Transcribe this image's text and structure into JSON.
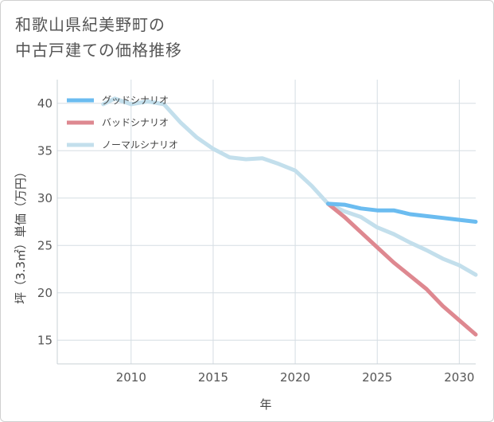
{
  "title": {
    "line1": "和歌山県紀美野町の",
    "line2": "中古戸建ての価格推移"
  },
  "chart_data": {
    "type": "line",
    "xlabel": "年",
    "ylabel": "坪（3.3㎡）単価（万円）",
    "xlim": [
      2005.5,
      2031
    ],
    "ylim": [
      12.5,
      42.5
    ],
    "x_ticks": [
      2010,
      2015,
      2020,
      2025,
      2030
    ],
    "y_ticks": [
      15,
      20,
      25,
      30,
      35,
      40
    ],
    "grid": true,
    "legend_position": "top-left",
    "series": [
      {
        "name": "グッドシナリオ",
        "color": "#6bbcf0",
        "width": 5,
        "x": [
          2022,
          2023,
          2024,
          2025,
          2026,
          2027,
          2028,
          2029,
          2030,
          2031
        ],
        "y": [
          29.4,
          29.3,
          28.9,
          28.7,
          28.7,
          28.3,
          28.1,
          27.9,
          27.7,
          27.5
        ]
      },
      {
        "name": "バッドシナリオ",
        "color": "#de8890",
        "width": 5,
        "x": [
          2022,
          2023,
          2024,
          2025,
          2026,
          2027,
          2028,
          2029,
          2030,
          2031
        ],
        "y": [
          29.4,
          28.0,
          26.4,
          24.8,
          23.2,
          21.8,
          20.4,
          18.6,
          17.1,
          15.6
        ]
      },
      {
        "name": "ノーマルシナリオ",
        "color": "#c3dfec",
        "width": 5,
        "x": [
          2008.3,
          2009,
          2010,
          2011,
          2012,
          2013,
          2014,
          2015,
          2016,
          2017,
          2018,
          2019,
          2020,
          2021,
          2022,
          2023,
          2024,
          2025,
          2026,
          2027,
          2028,
          2029,
          2030,
          2031
        ],
        "y": [
          39.9,
          40.5,
          39.9,
          40.2,
          39.9,
          38.0,
          36.4,
          35.2,
          34.3,
          34.1,
          34.2,
          33.6,
          32.9,
          31.3,
          29.4,
          28.6,
          28.0,
          26.9,
          26.2,
          25.3,
          24.5,
          23.6,
          22.9,
          21.9
        ]
      }
    ]
  }
}
